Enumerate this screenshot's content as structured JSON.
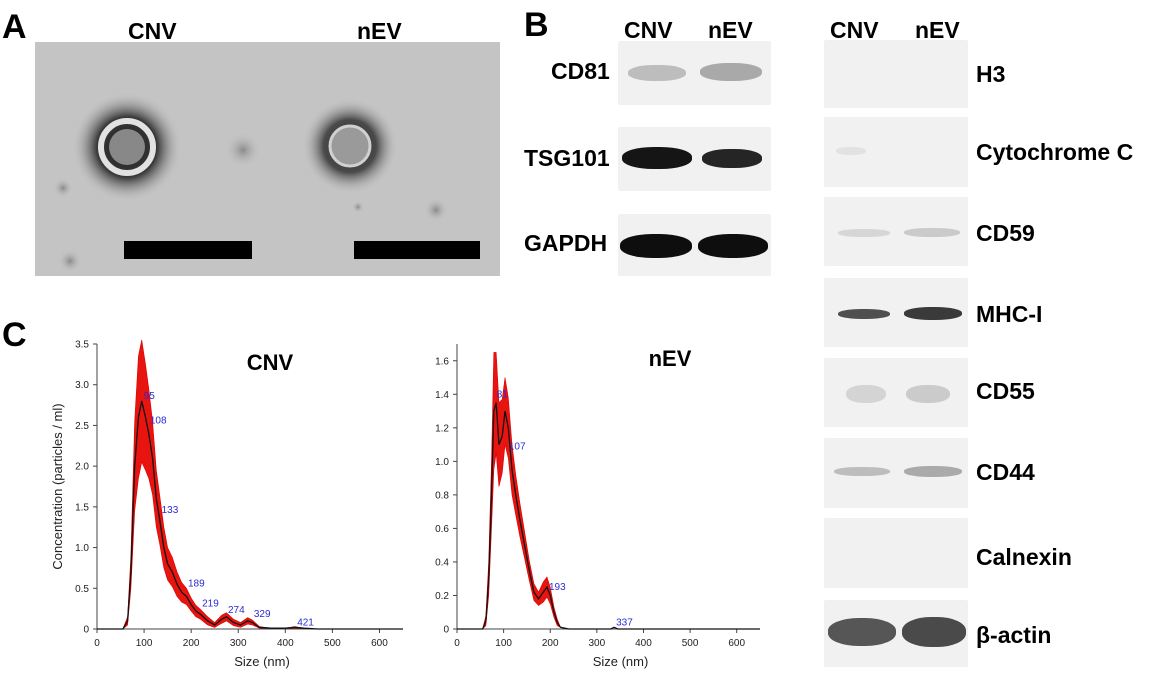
{
  "panels": {
    "a": "A",
    "b": "B",
    "c": "C"
  },
  "tem": {
    "left_title": "CNV",
    "right_title": "nEV"
  },
  "blot_small": {
    "col_headers": [
      "CNV",
      "nEV"
    ],
    "rows": [
      {
        "label": "CD81"
      },
      {
        "label": "TSG101"
      },
      {
        "label": "GAPDH"
      }
    ]
  },
  "blot_large": {
    "col_headers": [
      "CNV",
      "nEV"
    ],
    "rows": [
      {
        "label": "H3"
      },
      {
        "label": "Cytochrome C"
      },
      {
        "label": "CD59"
      },
      {
        "label": "MHC-I"
      },
      {
        "label": "CD55"
      },
      {
        "label": "CD44"
      },
      {
        "label": "Calnexin"
      },
      {
        "label": "β-actin"
      }
    ]
  },
  "chart_data": [
    {
      "type": "line",
      "title": "CNV",
      "xlabel": "Size (nm)",
      "ylabel": "Concentration (particles / ml)",
      "xlim": [
        0,
        650
      ],
      "ylim": [
        0,
        3.5
      ],
      "xticks": [
        "0",
        "100",
        "200",
        "300",
        "400",
        "500",
        "600"
      ],
      "yticks": [
        "0",
        "0.5",
        "1.0",
        "1.5",
        "2.0",
        "2.5",
        "3.0",
        "3.5"
      ],
      "x": [
        0,
        55,
        65,
        72,
        80,
        88,
        95,
        103,
        110,
        118,
        126,
        133,
        142,
        150,
        160,
        170,
        180,
        190,
        200,
        210,
        220,
        235,
        250,
        265,
        275,
        290,
        305,
        320,
        330,
        345,
        370,
        400,
        420,
        440,
        470,
        520,
        600,
        650
      ],
      "mean": [
        0,
        0,
        0.1,
        0.7,
        2.0,
        2.6,
        2.8,
        2.6,
        2.4,
        2.1,
        1.6,
        1.35,
        1.0,
        0.8,
        0.7,
        0.55,
        0.45,
        0.4,
        0.3,
        0.22,
        0.18,
        0.1,
        0.05,
        0.12,
        0.15,
        0.08,
        0.05,
        0.1,
        0.08,
        0.02,
        0.01,
        0.01,
        0.02,
        0.01,
        0,
        0,
        0,
        0
      ],
      "error": [
        0,
        0,
        0.05,
        0.2,
        0.55,
        0.75,
        0.75,
        0.65,
        0.55,
        0.45,
        0.35,
        0.3,
        0.25,
        0.2,
        0.18,
        0.15,
        0.12,
        0.1,
        0.08,
        0.07,
        0.06,
        0.05,
        0.03,
        0.05,
        0.05,
        0.04,
        0.03,
        0.04,
        0.03,
        0.01,
        0,
        0,
        0.01,
        0,
        0,
        0,
        0,
        0
      ],
      "peak_labels": [
        {
          "x": 95,
          "y": 2.8,
          "text": "95"
        },
        {
          "x": 108,
          "y": 2.5,
          "text": "108"
        },
        {
          "x": 133,
          "y": 1.4,
          "text": "133"
        },
        {
          "x": 189,
          "y": 0.5,
          "text": "189"
        },
        {
          "x": 219,
          "y": 0.25,
          "text": "219"
        },
        {
          "x": 274,
          "y": 0.17,
          "text": "274"
        },
        {
          "x": 329,
          "y": 0.12,
          "text": "329"
        },
        {
          "x": 421,
          "y": 0.02,
          "text": "421"
        }
      ]
    },
    {
      "type": "line",
      "title": "nEV",
      "xlabel": "Size (nm)",
      "ylabel": "",
      "xlim": [
        0,
        650
      ],
      "ylim": [
        0,
        1.7
      ],
      "xticks": [
        "0",
        "100",
        "200",
        "300",
        "400",
        "500",
        "600"
      ],
      "yticks": [
        "0",
        "0.2",
        "0.4",
        "0.6",
        "0.8",
        "1.0",
        "1.2",
        "1.4",
        "1.6"
      ],
      "x": [
        0,
        55,
        62,
        68,
        74,
        79,
        84,
        90,
        97,
        103,
        110,
        118,
        126,
        135,
        145,
        155,
        165,
        175,
        185,
        193,
        200,
        208,
        215,
        222,
        240,
        280,
        330,
        337,
        345,
        380,
        450,
        550,
        650
      ],
      "mean": [
        0,
        0,
        0.05,
        0.3,
        0.8,
        1.3,
        1.35,
        1.1,
        1.15,
        1.3,
        1.2,
        0.95,
        0.8,
        0.65,
        0.5,
        0.35,
        0.22,
        0.18,
        0.22,
        0.25,
        0.2,
        0.1,
        0.04,
        0.01,
        0,
        0,
        0,
        0.01,
        0,
        0,
        0,
        0,
        0
      ],
      "error": [
        0,
        0,
        0.03,
        0.1,
        0.2,
        0.35,
        0.3,
        0.25,
        0.22,
        0.2,
        0.18,
        0.15,
        0.12,
        0.1,
        0.08,
        0.06,
        0.05,
        0.04,
        0.06,
        0.06,
        0.05,
        0.03,
        0.02,
        0,
        0,
        0,
        0,
        0,
        0,
        0,
        0,
        0,
        0
      ],
      "peak_labels": [
        {
          "x": 81,
          "y": 1.37,
          "text": "81"
        },
        {
          "x": 107,
          "y": 1.06,
          "text": "107"
        },
        {
          "x": 193,
          "y": 0.22,
          "text": "193"
        },
        {
          "x": 337,
          "y": 0.01,
          "text": "337"
        }
      ]
    }
  ]
}
